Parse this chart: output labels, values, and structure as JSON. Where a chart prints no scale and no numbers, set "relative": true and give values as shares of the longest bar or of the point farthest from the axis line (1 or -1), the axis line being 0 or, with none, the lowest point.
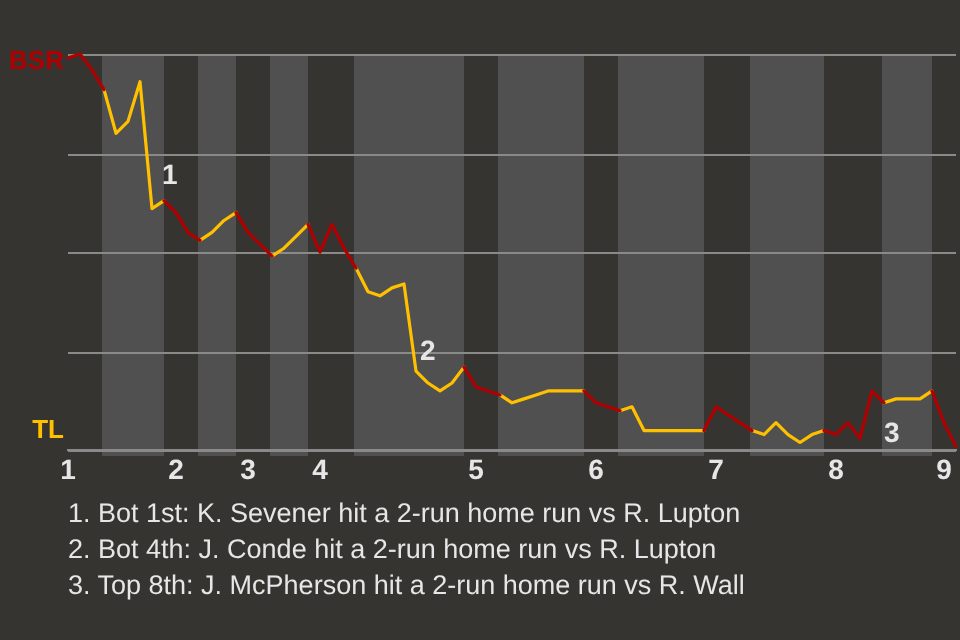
{
  "chart_data": {
    "type": "line",
    "relative": true,
    "categories": [
      "1",
      null,
      null,
      null,
      null,
      null,
      null,
      null,
      null,
      "2",
      null,
      null,
      null,
      null,
      null,
      "3",
      null,
      null,
      null,
      null,
      null,
      "4",
      null,
      null,
      null,
      null,
      null,
      null,
      null,
      null,
      null,
      null,
      null,
      null,
      "5",
      null,
      null,
      null,
      null,
      null,
      null,
      null,
      null,
      null,
      "6",
      null,
      null,
      null,
      null,
      null,
      null,
      null,
      null,
      null,
      "7",
      null,
      null,
      null,
      null,
      null,
      null,
      null,
      null,
      null,
      "8",
      null,
      null,
      null,
      null,
      null,
      null,
      null,
      null,
      "9",
      null
    ],
    "series": [
      {
        "name": "BSR",
        "color": "#b00000",
        "values": [
          0.99,
          1,
          0.96,
          0.91,
          null,
          null,
          null,
          null,
          0.63,
          0.6,
          0.55,
          0.53,
          null,
          null,
          0.6,
          0.55,
          0.52,
          0.49,
          null,
          null,
          0.57,
          0.5,
          0.57,
          0.51,
          0.46,
          null,
          null,
          null,
          null,
          null,
          null,
          null,
          null,
          0.21,
          0.16,
          0.15,
          0.14,
          null,
          null,
          null,
          null,
          null,
          null,
          0.15,
          0.12,
          0.11,
          0.1,
          null,
          null,
          null,
          null,
          null,
          null,
          0.05,
          0.11,
          0.09,
          0.07,
          0.05,
          null,
          null,
          null,
          null,
          null,
          0.05,
          0.04,
          0.07,
          0.03,
          0.15,
          0.12,
          null,
          null,
          null,
          0.15,
          0.07,
          0.01
        ]
      },
      {
        "name": "TL",
        "color": "#ffc000",
        "values": [
          null,
          null,
          null,
          0.91,
          0.8,
          0.83,
          0.93,
          0.61,
          0.63,
          null,
          null,
          0.53,
          0.55,
          0.58,
          0.6,
          null,
          null,
          0.49,
          0.51,
          0.54,
          0.57,
          null,
          null,
          null,
          0.46,
          0.4,
          0.39,
          0.41,
          0.42,
          0.2,
          0.17,
          0.15,
          0.17,
          0.21,
          null,
          null,
          0.14,
          0.12,
          0.13,
          0.14,
          0.15,
          0.15,
          0.15,
          0.15,
          null,
          null,
          0.1,
          0.11,
          0.05,
          0.05,
          0.05,
          0.05,
          0.05,
          0.05,
          null,
          null,
          null,
          0.05,
          0.04,
          0.07,
          0.04,
          0.02,
          0.04,
          0.05,
          null,
          null,
          null,
          null,
          0.12,
          0.13,
          0.13,
          0.13,
          0.15,
          null,
          null
        ]
      }
    ],
    "grid": "y",
    "marker": "none",
    "line_style": "solid",
    "legend": false,
    "annotations": [
      "1",
      "2",
      "3",
      "1. Bot 1st: K. Sevener hit a 2-run home run vs R. Lupton",
      "2. Bot 4th: J. Conde hit a 2-run home run vs R. Lupton",
      "3. Top 8th: J. McPherson hit a 2-run home run vs R. Wall"
    ]
  }
}
